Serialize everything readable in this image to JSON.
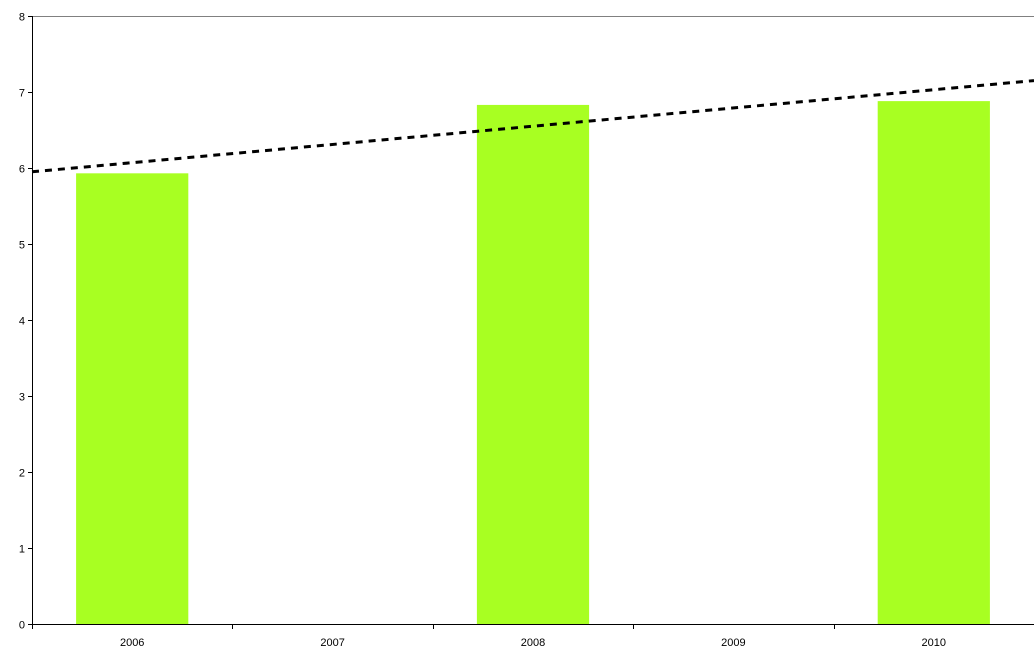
{
  "chart_data": {
    "type": "bar",
    "categories": [
      "2006",
      "2007",
      "2008",
      "2009",
      "2010"
    ],
    "values": [
      5.93,
      null,
      6.83,
      null,
      6.88
    ],
    "ylim": [
      0,
      8
    ],
    "yticks": [
      0,
      1,
      2,
      3,
      4,
      5,
      6,
      7,
      8
    ],
    "trendline": {
      "style": "dotted",
      "start_value": 5.95,
      "end_value": 7.15
    },
    "grid": false,
    "legend": "none",
    "colors": {
      "bar": "#a8ff22",
      "trendline": "#000000",
      "axis": "#000000"
    }
  }
}
